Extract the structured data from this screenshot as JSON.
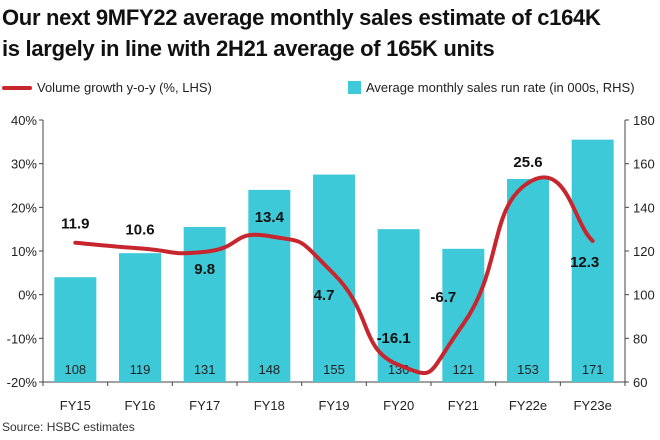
{
  "title_line1": "Our next 9MFY22 average monthly sales estimate of c164K",
  "title_line2": "is largely in line with 2H21 average of 165K units",
  "source": "Source: HSBC estimates",
  "colors": {
    "line": "#c8262e",
    "bar": "#3ec9d8"
  },
  "chart_data": {
    "type": "bar+line",
    "categories": [
      "FY15",
      "FY16",
      "FY17",
      "FY18",
      "FY19",
      "FY20",
      "FY21",
      "FY22e",
      "FY23e"
    ],
    "series": [
      {
        "name": "Volume growth y-o-y (%, LHS)",
        "type": "line",
        "axis": "left",
        "values": [
          11.9,
          10.6,
          9.8,
          13.4,
          4.7,
          -16.1,
          -6.7,
          25.6,
          12.3
        ],
        "labels": [
          "11.9",
          "10.6",
          "9.8",
          "13.4",
          "4.7",
          "-16.1",
          "-6.7",
          "25.6",
          "12.3"
        ]
      },
      {
        "name": "Average monthly sales run rate (in 000s, RHS)",
        "type": "bar",
        "axis": "right",
        "values": [
          108,
          119,
          131,
          148,
          155,
          130,
          121,
          153,
          171
        ],
        "labels": [
          "108",
          "119",
          "131",
          "148",
          "155",
          "130",
          "121",
          "153",
          "171"
        ]
      }
    ],
    "left_axis": {
      "ylim": [
        -20,
        40
      ],
      "ticks": [
        "-20%",
        "-10%",
        "0%",
        "10%",
        "20%",
        "30%",
        "40%"
      ]
    },
    "right_axis": {
      "ylim": [
        60,
        180
      ],
      "ticks": [
        "60",
        "80",
        "100",
        "120",
        "140",
        "160",
        "180"
      ]
    },
    "legend": "top"
  }
}
